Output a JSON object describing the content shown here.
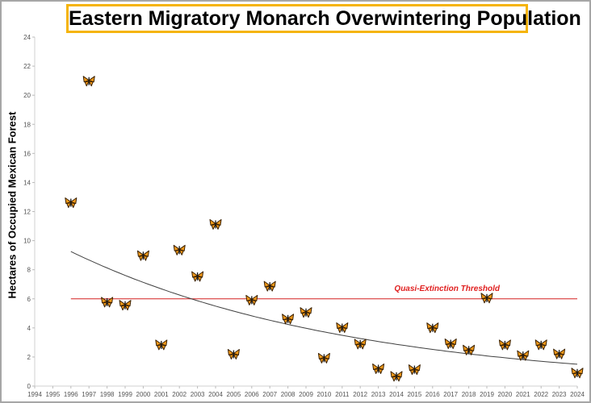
{
  "chart_data": {
    "type": "scatter",
    "title": "Eastern Migratory Monarch Overwintering Population",
    "xlabel": "",
    "ylabel": "Hectares of Occupied Mexican Forest",
    "xlim": [
      1994,
      2024
    ],
    "ylim": [
      0,
      24
    ],
    "x_ticks": [
      1994,
      1995,
      1996,
      1997,
      1998,
      1999,
      2000,
      2001,
      2002,
      2003,
      2004,
      2005,
      2006,
      2007,
      2008,
      2009,
      2010,
      2011,
      2012,
      2013,
      2014,
      2015,
      2016,
      2017,
      2018,
      2019,
      2020,
      2021,
      2022,
      2023,
      2024
    ],
    "y_ticks": [
      0,
      2,
      4,
      6,
      8,
      10,
      12,
      14,
      16,
      18,
      20,
      22,
      24
    ],
    "grid": false,
    "marker": "butterfly-icon",
    "marker_color": "#f29a1a",
    "x": [
      1996,
      1997,
      1998,
      1999,
      2000,
      2001,
      2002,
      2003,
      2004,
      2005,
      2006,
      2007,
      2008,
      2009,
      2010,
      2011,
      2012,
      2013,
      2014,
      2015,
      2016,
      2017,
      2018,
      2019,
      2020,
      2021,
      2022,
      2023,
      2024
    ],
    "y": [
      12.61,
      20.97,
      5.77,
      5.56,
      8.97,
      2.83,
      9.35,
      7.54,
      11.12,
      2.19,
      5.91,
      6.87,
      4.61,
      5.06,
      1.92,
      4.02,
      2.89,
      1.19,
      0.67,
      1.13,
      4.01,
      2.91,
      2.48,
      6.05,
      2.83,
      2.1,
      2.84,
      2.21,
      0.9
    ],
    "trendline": {
      "type": "exponential",
      "x_range": [
        1996,
        2024
      ],
      "y_start": 9.25,
      "y_end": 1.5,
      "color": "#404040"
    },
    "threshold": {
      "value": 6,
      "label": "Quasi-Extinction Threshold",
      "color": "#d42020",
      "x_range": [
        1996,
        2024
      ]
    }
  }
}
